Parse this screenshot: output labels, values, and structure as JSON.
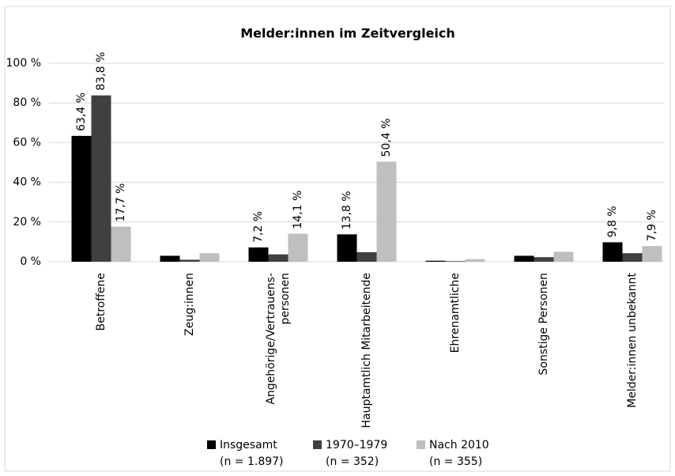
{
  "chart_data": {
    "type": "bar",
    "title": "Melder:innen im Zeitvergleich",
    "categories": [
      "Betroffene",
      "Zeug:innen",
      "Angehörige/Vertrauens-\npersonen",
      "Hauptamtlich Mitarbeitende",
      "Ehrenamtliche",
      "Sonstige Personen",
      "Melder:innen unbekannt"
    ],
    "series": [
      {
        "name": "Insgesamt",
        "n_label": "(n = 1.897)",
        "color": "#000000",
        "values": [
          63.4,
          3.0,
          7.2,
          13.8,
          0.5,
          3.0,
          9.8
        ],
        "value_labels": [
          "63,4 %",
          null,
          "7,2 %",
          "13,8 %",
          null,
          null,
          "9,8 %"
        ]
      },
      {
        "name": "1970–1979",
        "n_label": "(n = 352)",
        "color": "#404040",
        "values": [
          83.8,
          1.0,
          3.7,
          4.8,
          0.3,
          2.3,
          4.3
        ],
        "value_labels": [
          "83,8 %",
          null,
          null,
          null,
          null,
          null,
          null
        ]
      },
      {
        "name": "Nach 2010",
        "n_label": "(n = 355)",
        "color": "#bfbfbf",
        "values": [
          17.7,
          4.3,
          14.1,
          50.4,
          1.3,
          5.0,
          7.9
        ],
        "value_labels": [
          "17,7 %",
          null,
          "14,1 %",
          "50,4 %",
          null,
          null,
          "7,9 %"
        ]
      }
    ],
    "ylim": [
      0,
      100
    ],
    "yticks": [
      {
        "value": 0,
        "label": "0 %"
      },
      {
        "value": 20,
        "label": "20 %"
      },
      {
        "value": 40,
        "label": "40 %"
      },
      {
        "value": 60,
        "label": "60 %"
      },
      {
        "value": 80,
        "label": "80 %"
      },
      {
        "value": 100,
        "label": "100 %"
      }
    ],
    "grid": true
  }
}
